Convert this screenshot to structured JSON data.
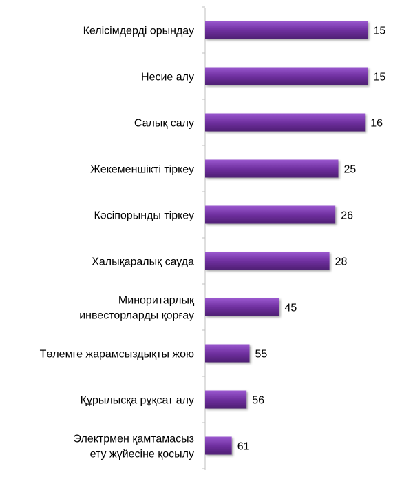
{
  "chart_data": {
    "type": "bar",
    "orientation": "horizontal",
    "categories": [
      "Келісімдерді орындау",
      "Несие алу",
      "Салық салу",
      "Жекеменшікті тіркеу",
      "Кәсіпорынды тіркеу",
      "Халықаралық сауда",
      "Миноритарлық инвесторларды қорғау",
      "Төлемге жарамсыздықты жою",
      "Құрылысқа рұқсат алу",
      "Электрмен қамтамасыз ету жүйесіне қосылу"
    ],
    "values": [
      15,
      15,
      16,
      25,
      26,
      28,
      45,
      55,
      56,
      61
    ],
    "value_direction": "reversed",
    "title": "",
    "xlabel": "",
    "ylabel": "",
    "grid": false,
    "legend": "none",
    "colors": {
      "bar": "#7030A0",
      "bar_light": "#9B59D0",
      "bar_dark": "#4E1F73",
      "axis": "#BFBFBF"
    }
  }
}
